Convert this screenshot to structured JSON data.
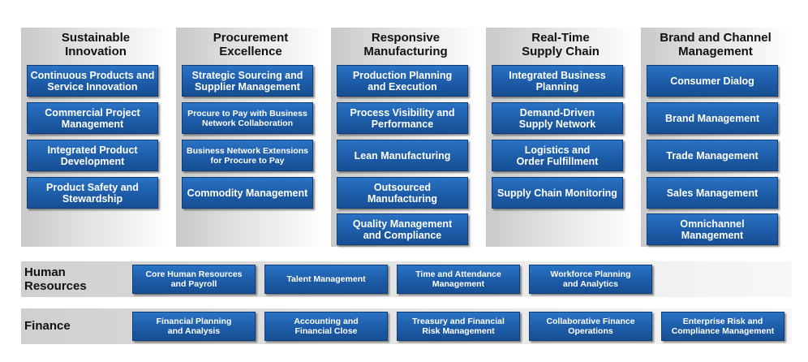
{
  "columns": [
    {
      "title": "Sustainable\nInnovation",
      "items": [
        "Continuous Products and\nService Innovation",
        "Commercial Project\nManagement",
        "Integrated Product\nDevelopment",
        "Product Safety and\nStewardship"
      ]
    },
    {
      "title": "Procurement\nExcellence",
      "items": [
        "Strategic Sourcing and\nSupplier Management",
        "Procure to Pay with Business\nNetwork Collaboration",
        "Business Network Extensions\nfor Procure to Pay",
        "Commodity Management"
      ]
    },
    {
      "title": "Responsive\nManufacturing",
      "items": [
        "Production Planning\nand Execution",
        "Process Visibility and\nPerformance",
        "Lean Manufacturing",
        "Outsourced\nManufacturing",
        "Quality Management\nand Compliance"
      ]
    },
    {
      "title": "Real-Time\nSupply Chain",
      "items": [
        "Integrated Business\nPlanning",
        "Demand-Driven\nSupply Network",
        "Logistics and\nOrder Fulfillment",
        "Supply Chain Monitoring"
      ]
    },
    {
      "title": "Brand and Channel\nManagement",
      "items": [
        "Consumer Dialog",
        "Brand Management",
        "Trade Management",
        "Sales Management",
        "Omnichannel\nManagement"
      ]
    }
  ],
  "rows": [
    {
      "label": "Human\nResources",
      "items": [
        "Core Human Resources\nand Payroll",
        "Talent Management",
        "Time and Attendance\nManagement",
        "Workforce Planning\nand Analytics"
      ]
    },
    {
      "label": "Finance",
      "items": [
        "Financial Planning\nand Analysis",
        "Accounting and\nFinancial Close",
        "Treasury and Financial\nRisk Management",
        "Collaborative Finance\nOperations",
        "Enterprise Risk and\nCompliance Management"
      ]
    }
  ]
}
